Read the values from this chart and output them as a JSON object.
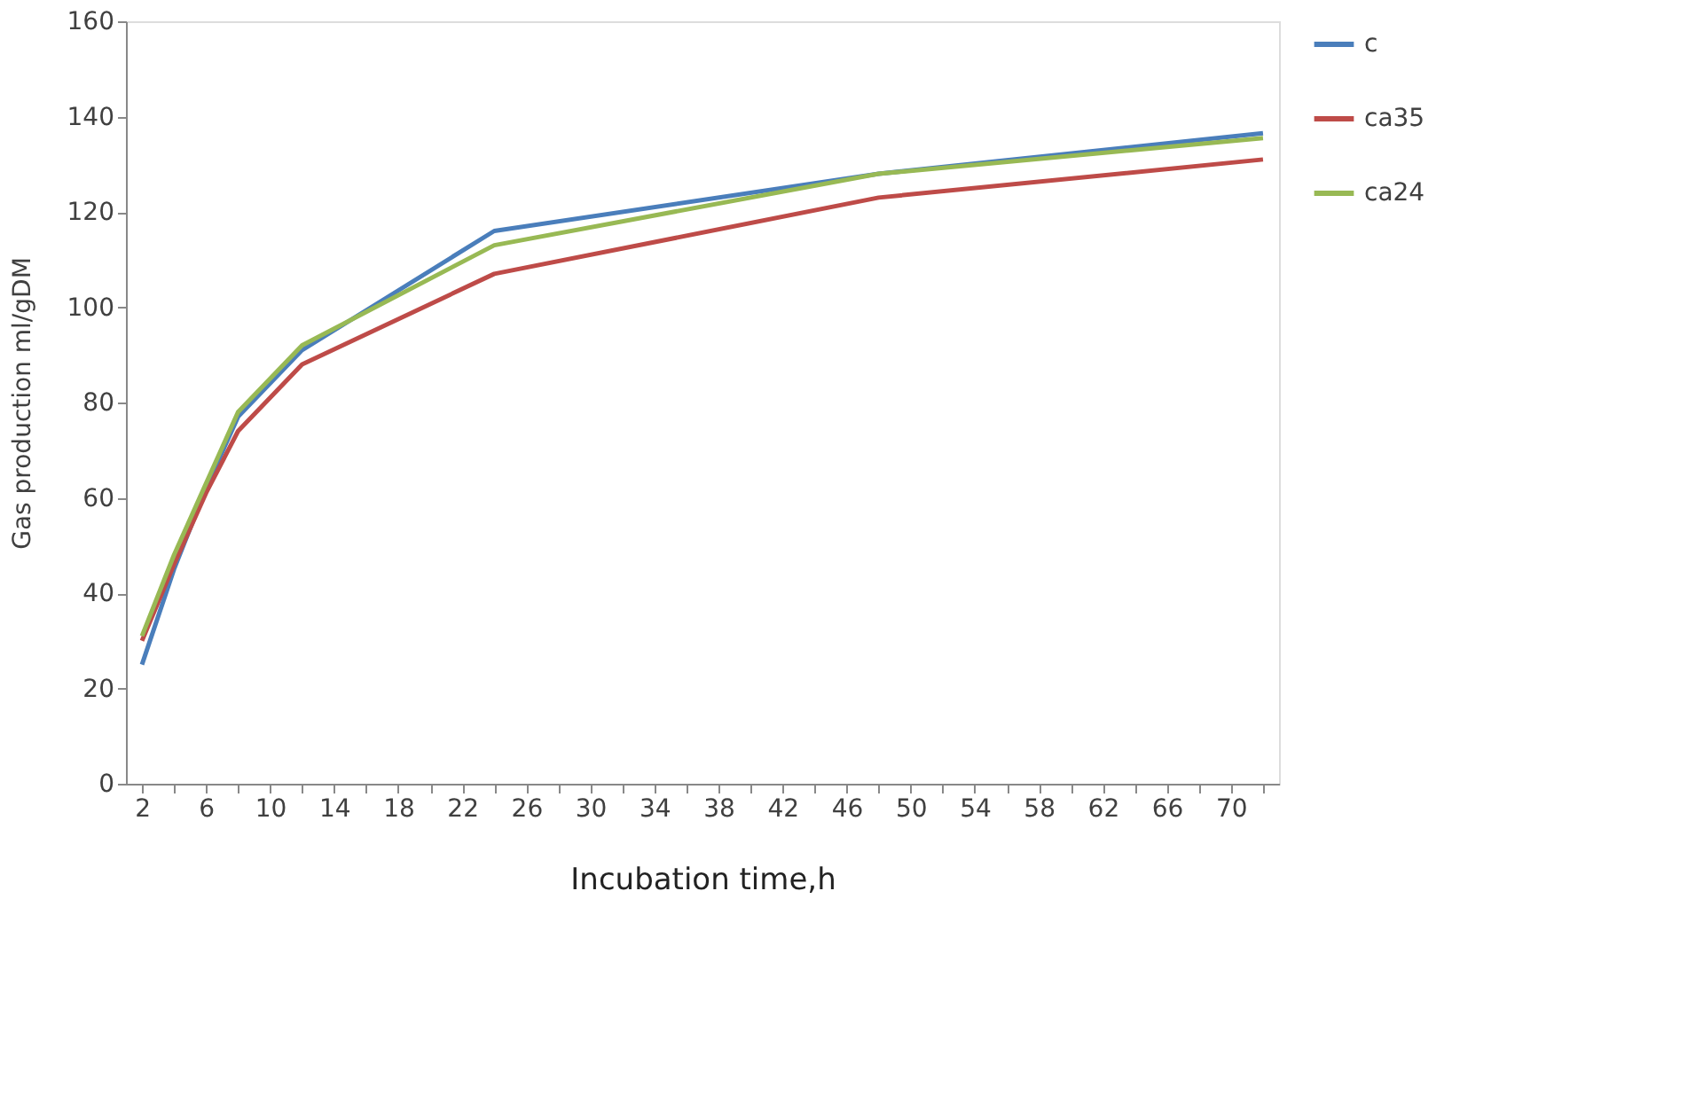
{
  "chart_data": {
    "type": "line",
    "xlabel": "Incubation time,h",
    "ylabel": "Gas production ml/gDM",
    "x": [
      2,
      4,
      6,
      8,
      12,
      24,
      48,
      72
    ],
    "series": [
      {
        "name": "c",
        "color": "#4a7ebb",
        "values": [
          25,
          45,
          62,
          77,
          91,
          116,
          128,
          136.5
        ]
      },
      {
        "name": "ca35",
        "color": "#be4b48",
        "values": [
          30,
          46,
          61,
          74,
          88,
          107,
          123,
          131
        ]
      },
      {
        "name": "ca24",
        "color": "#98b954",
        "values": [
          31,
          48,
          63,
          78,
          92,
          113,
          128,
          135.5
        ]
      }
    ],
    "xlim": [
      1,
      73
    ],
    "ylim": [
      0,
      160
    ],
    "xticks": [
      2,
      {
        "value": 4,
        "label": null
      },
      6,
      {
        "value": 8,
        "label": null
      },
      10,
      {
        "value": 12,
        "label": null
      },
      14,
      {
        "value": 16,
        "label": null
      },
      18,
      {
        "value": 20,
        "label": null
      },
      22,
      {
        "value": 24,
        "label": null
      },
      26,
      {
        "value": 28,
        "label": null
      },
      30,
      {
        "value": 32,
        "label": null
      },
      34,
      {
        "value": 36,
        "label": null
      },
      38,
      {
        "value": 40,
        "label": null
      },
      42,
      {
        "value": 44,
        "label": null
      },
      46,
      {
        "value": 48,
        "label": null
      },
      50,
      {
        "value": 52,
        "label": null
      },
      54,
      {
        "value": 56,
        "label": null
      },
      58,
      {
        "value": 60,
        "label": null
      },
      62,
      {
        "value": 64,
        "label": null
      },
      66,
      {
        "value": 68,
        "label": null
      },
      70,
      {
        "value": 72,
        "label": null
      }
    ],
    "yticks": [
      0,
      20,
      40,
      60,
      80,
      100,
      120,
      140,
      160
    ],
    "grid": false,
    "legend": "right",
    "marker": "none",
    "line_style": "solid"
  }
}
